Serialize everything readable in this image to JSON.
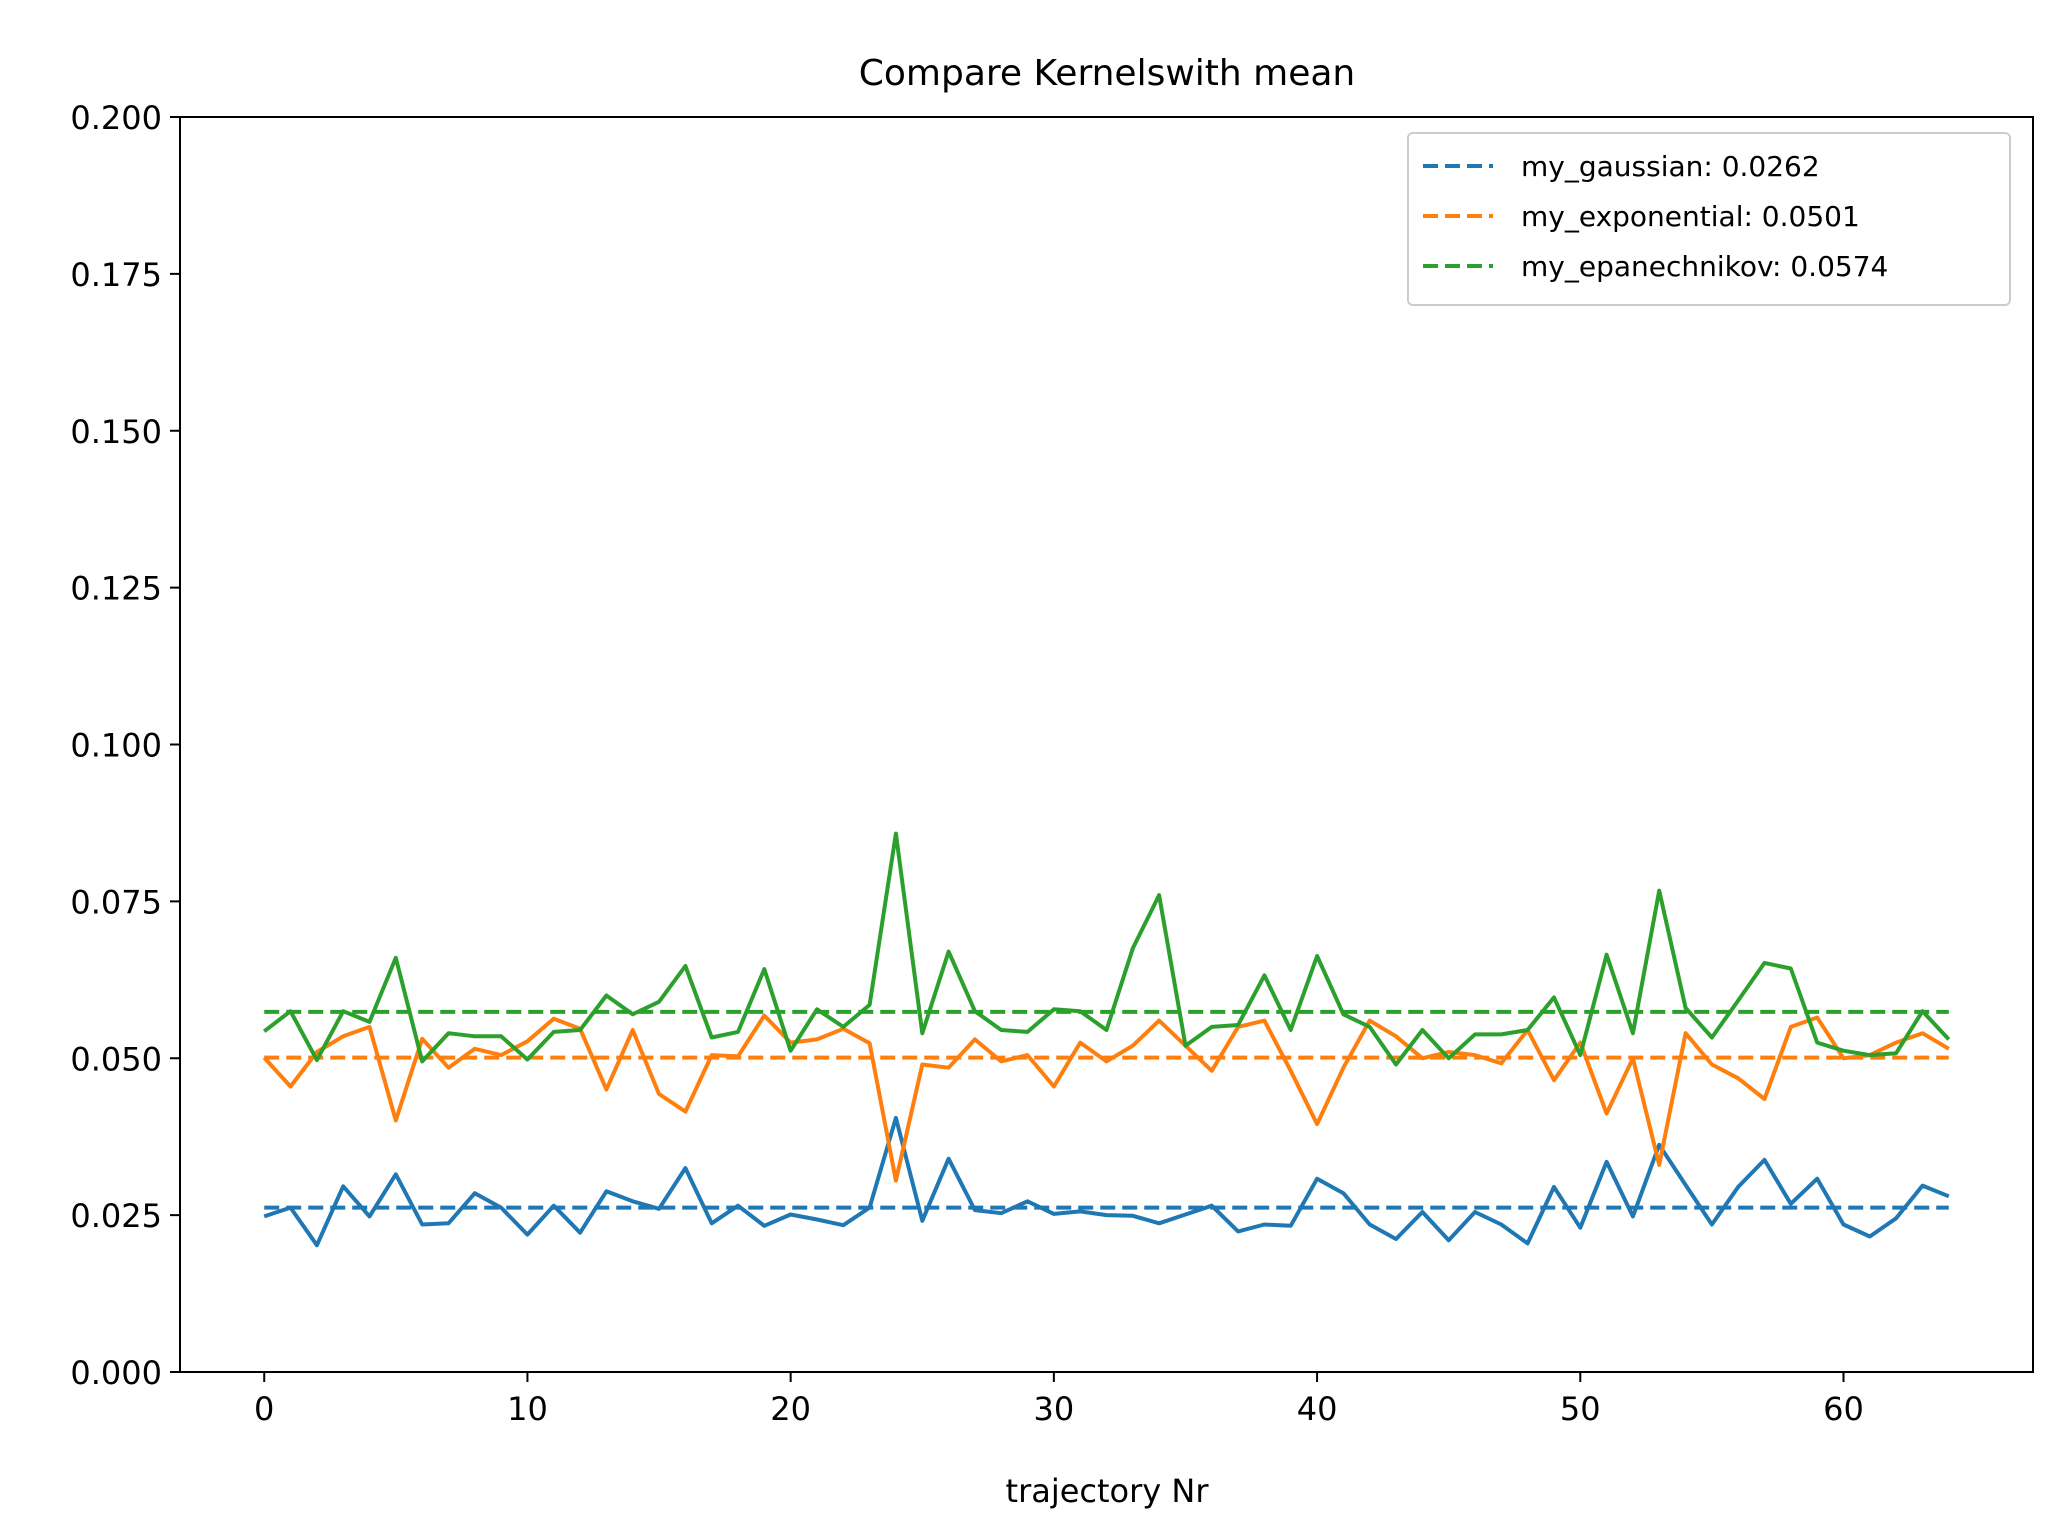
{
  "chart_data": {
    "type": "line",
    "title": "Compare Kernelswith mean",
    "xlabel": "trajectory Nr",
    "ylabel": "",
    "xlim": [
      -3.2,
      67.2
    ],
    "ylim": [
      0,
      0.2
    ],
    "xticks": [
      0,
      10,
      20,
      30,
      40,
      50,
      60
    ],
    "yticks": [
      0.0,
      0.025,
      0.05,
      0.075,
      0.1,
      0.125,
      0.15,
      0.175,
      0.2
    ],
    "ytick_labels": [
      "0.000",
      "0.025",
      "0.050",
      "0.075",
      "0.100",
      "0.125",
      "0.150",
      "0.175",
      "0.200"
    ],
    "grid": false,
    "legend_position": "top-right",
    "x": [
      0,
      1,
      2,
      3,
      4,
      5,
      6,
      7,
      8,
      9,
      10,
      11,
      12,
      13,
      14,
      15,
      16,
      17,
      18,
      19,
      20,
      21,
      22,
      23,
      24,
      25,
      26,
      27,
      28,
      29,
      30,
      31,
      32,
      33,
      34,
      35,
      36,
      37,
      38,
      39,
      40,
      41,
      42,
      43,
      44,
      45,
      46,
      47,
      48,
      49,
      50,
      51,
      52,
      53,
      54,
      55,
      56,
      57,
      58,
      59,
      60,
      61,
      62,
      63,
      64
    ],
    "series": [
      {
        "name": "my_gaussian",
        "color": "#1f77b4",
        "mean": 0.0262,
        "legend_label": "my_gaussian: 0.0262",
        "values": [
          0.0248,
          0.0262,
          0.0202,
          0.0296,
          0.0248,
          0.0315,
          0.0235,
          0.0237,
          0.0285,
          0.0262,
          0.0219,
          0.0265,
          0.0222,
          0.0288,
          0.0272,
          0.026,
          0.0325,
          0.0237,
          0.0265,
          0.0233,
          0.0251,
          0.0243,
          0.0234,
          0.0262,
          0.0405,
          0.0241,
          0.034,
          0.0258,
          0.0253,
          0.0272,
          0.0252,
          0.0256,
          0.025,
          0.0249,
          0.0237,
          0.0251,
          0.0265,
          0.0224,
          0.0235,
          0.0233,
          0.0308,
          0.0285,
          0.0235,
          0.0212,
          0.0255,
          0.021,
          0.0255,
          0.0235,
          0.0205,
          0.0295,
          0.023,
          0.0335,
          0.0248,
          0.0362,
          0.0298,
          0.0235,
          0.0295,
          0.0338,
          0.0268,
          0.0308,
          0.0235,
          0.0216,
          0.0245,
          0.0297,
          0.028
        ]
      },
      {
        "name": "my_exponential",
        "color": "#ff7f0e",
        "mean": 0.0501,
        "legend_label": "my_exponential: 0.0501",
        "values": [
          0.0501,
          0.0455,
          0.051,
          0.0535,
          0.055,
          0.0401,
          0.0531,
          0.0485,
          0.0515,
          0.0505,
          0.0527,
          0.0563,
          0.0547,
          0.045,
          0.0545,
          0.0443,
          0.0415,
          0.0505,
          0.0503,
          0.0568,
          0.0525,
          0.053,
          0.0547,
          0.0524,
          0.0305,
          0.049,
          0.0485,
          0.053,
          0.0495,
          0.0505,
          0.0455,
          0.0525,
          0.0495,
          0.052,
          0.056,
          0.052,
          0.048,
          0.055,
          0.056,
          0.048,
          0.0395,
          0.0485,
          0.056,
          0.0535,
          0.05,
          0.051,
          0.0505,
          0.0492,
          0.0545,
          0.0465,
          0.0525,
          0.0412,
          0.05,
          0.033,
          0.054,
          0.049,
          0.0468,
          0.0435,
          0.055,
          0.0565,
          0.05,
          0.0505,
          0.0525,
          0.054,
          0.0515
        ]
      },
      {
        "name": "my_epanechnikov",
        "color": "#2ca02c",
        "mean": 0.0574,
        "legend_label": "my_epanechnikov: 0.0574",
        "values": [
          0.0543,
          0.0575,
          0.0497,
          0.0575,
          0.0558,
          0.066,
          0.0495,
          0.054,
          0.0535,
          0.0535,
          0.0498,
          0.0542,
          0.0545,
          0.06,
          0.057,
          0.059,
          0.0647,
          0.0533,
          0.0542,
          0.0642,
          0.0512,
          0.0578,
          0.055,
          0.0585,
          0.0858,
          0.054,
          0.067,
          0.0575,
          0.0545,
          0.0542,
          0.0578,
          0.0575,
          0.0545,
          0.0675,
          0.076,
          0.052,
          0.055,
          0.0553,
          0.0632,
          0.0545,
          0.0663,
          0.057,
          0.055,
          0.049,
          0.0545,
          0.05,
          0.0538,
          0.0538,
          0.0545,
          0.0597,
          0.0505,
          0.0665,
          0.054,
          0.0767,
          0.058,
          0.0533,
          0.0592,
          0.0652,
          0.0643,
          0.0525,
          0.0512,
          0.0505,
          0.0508,
          0.0575,
          0.053
        ]
      }
    ]
  }
}
